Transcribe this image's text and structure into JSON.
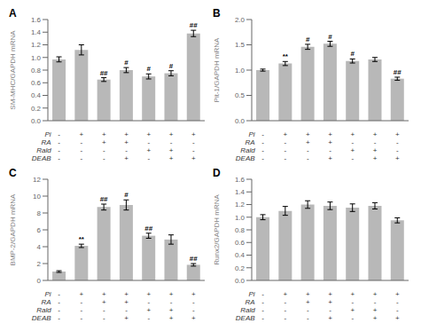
{
  "chart_data": [
    {
      "type": "bar",
      "title": "A",
      "ylabel": "SM-MHC/GAPDH mRNA",
      "categories": [
        null,
        null,
        null,
        null,
        null,
        null,
        null
      ],
      "values": [
        0.97,
        1.12,
        0.65,
        0.8,
        0.7,
        0.75,
        1.38
      ],
      "errors": [
        0.04,
        0.08,
        0.03,
        0.04,
        0.04,
        0.04,
        0.05
      ],
      "annotations": [
        null,
        null,
        "##",
        "#",
        "#",
        "#",
        "##"
      ],
      "color": "#b8b8b8",
      "ylim": [
        0,
        1.6
      ],
      "yticks": [
        {
          "value": 0.0,
          "label": "0.0"
        },
        0.2,
        0.4,
        0.6,
        0.8,
        {
          "value": 1.0,
          "label": "1.0"
        },
        1.2,
        1.4,
        1.6
      ],
      "grid": false,
      "tick_labels": "y",
      "treatment_labels": [
        "Pi",
        "RA",
        "Rald",
        "DEAB"
      ],
      "treatments": [
        [
          "-",
          "+",
          "+",
          "+",
          "+",
          "+",
          "+"
        ],
        [
          "-",
          "-",
          "+",
          "+",
          "-",
          "-",
          "-"
        ],
        [
          "-",
          "-",
          "-",
          "-",
          "+",
          "+",
          "-"
        ],
        [
          "-",
          "-",
          "-",
          "+",
          "-",
          "+",
          "+"
        ]
      ]
    },
    {
      "type": "bar",
      "title": "B",
      "ylabel": "Pit-1/GAPDH mRNA",
      "categories": [
        null,
        null,
        null,
        null,
        null,
        null,
        null
      ],
      "values": [
        1.0,
        1.13,
        1.46,
        1.52,
        1.18,
        1.21,
        0.83
      ],
      "errors": [
        0.02,
        0.04,
        0.05,
        0.05,
        0.04,
        0.04,
        0.03
      ],
      "annotations": [
        null,
        "**",
        "#",
        "#",
        "#",
        null,
        "##"
      ],
      "color": "#b8b8b8",
      "ylim": [
        0,
        2.0
      ],
      "yticks": [
        {
          "value": 0.0,
          "label": "0.0"
        },
        0.5,
        {
          "value": 1.0,
          "label": "1.0"
        },
        1.5,
        {
          "value": 2.0,
          "label": "2.0"
        }
      ],
      "grid": false,
      "tick_labels": "y",
      "treatment_labels": [
        "Pi",
        "RA",
        "Rald",
        "DEAB"
      ],
      "treatments": [
        [
          "-",
          "+",
          "+",
          "+",
          "+",
          "+",
          "+"
        ],
        [
          "-",
          "-",
          "+",
          "+",
          "-",
          "-",
          "-"
        ],
        [
          "-",
          "-",
          "-",
          "-",
          "+",
          "+",
          "-"
        ],
        [
          "-",
          "-",
          "-",
          "+",
          "-",
          "+",
          "+"
        ]
      ]
    },
    {
      "type": "bar",
      "title": "C",
      "ylabel": "BMP-2/GAPDH mRNA",
      "categories": [
        null,
        null,
        null,
        null,
        null,
        null,
        null
      ],
      "values": [
        1.05,
        4.1,
        8.7,
        8.95,
        5.3,
        4.85,
        1.85
      ],
      "errors": [
        0.1,
        0.2,
        0.35,
        0.6,
        0.3,
        0.55,
        0.15
      ],
      "annotations": [
        null,
        "**",
        "##",
        "#",
        "##",
        null,
        "##"
      ],
      "color": "#b8b8b8",
      "ylim": [
        0,
        12
      ],
      "yticks": [
        0,
        2,
        4,
        6,
        8,
        10,
        12
      ],
      "grid": false,
      "tick_labels": "y",
      "treatment_labels": [
        "Pi",
        "RA",
        "Rald",
        "DEAB"
      ],
      "treatments": [
        [
          "-",
          "+",
          "+",
          "+",
          "+",
          "+",
          "+"
        ],
        [
          "-",
          "-",
          "+",
          "+",
          "-",
          "-",
          "-"
        ],
        [
          "-",
          "-",
          "-",
          "-",
          "+",
          "+",
          "-"
        ],
        [
          "-",
          "-",
          "-",
          "+",
          "-",
          "+",
          "+"
        ]
      ]
    },
    {
      "type": "bar",
      "title": "D",
      "ylabel": "Runx2/GAPDH mRNA",
      "categories": [
        null,
        null,
        null,
        null,
        null,
        null,
        null
      ],
      "values": [
        1.0,
        1.1,
        1.2,
        1.18,
        1.15,
        1.18,
        0.95
      ],
      "errors": [
        0.04,
        0.07,
        0.06,
        0.06,
        0.06,
        0.05,
        0.04
      ],
      "color": "#b8b8b8",
      "ylim": [
        0,
        1.6
      ],
      "yticks": [
        {
          "value": 0.0,
          "label": "0.0"
        },
        0.2,
        0.4,
        0.6,
        0.8,
        {
          "value": 1.0,
          "label": "1.0"
        },
        1.2,
        1.4,
        1.6
      ],
      "grid": false,
      "tick_labels": "y",
      "treatment_labels": [
        "Pi",
        "RA",
        "Rald",
        "DEAB"
      ],
      "treatments": [
        [
          "-",
          "+",
          "+",
          "+",
          "+",
          "+",
          "+"
        ],
        [
          "-",
          "-",
          "+",
          "+",
          "-",
          "-",
          "-"
        ],
        [
          "-",
          "-",
          "-",
          "-",
          "+",
          "+",
          "-"
        ],
        [
          "-",
          "-",
          "-",
          "+",
          "-",
          "+",
          "+"
        ]
      ]
    }
  ]
}
